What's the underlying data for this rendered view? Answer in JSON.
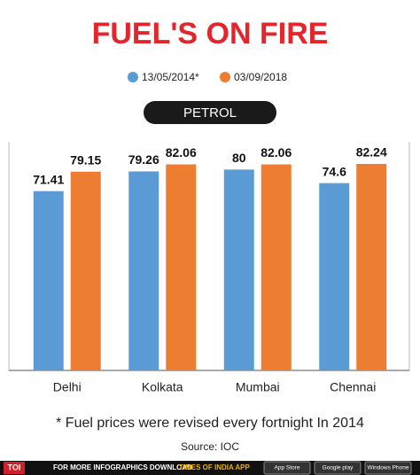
{
  "chart_data": {
    "type": "bar",
    "title": "FUEL'S ON FIRE",
    "subtitle": "PETROL",
    "categories": [
      "Delhi",
      "Kolkata",
      "Mumbai",
      "Chennai"
    ],
    "series": [
      {
        "name": "13/05/2014*",
        "color": "#5b9bd5",
        "values": [
          71.41,
          79.26,
          80,
          74.6
        ]
      },
      {
        "name": "03/09/2018",
        "color": "#ed7d31",
        "values": [
          79.15,
          82.06,
          82.06,
          82.24
        ]
      }
    ],
    "footnote": "* Fuel prices were revised every fortnight In 2014",
    "source": "Source: IOC"
  },
  "footer": {
    "logo": "TOI",
    "text": "FOR MORE  INFOGRAPHICS DOWNLOAD",
    "app": "TIMES OF INDIA APP",
    "badges": [
      "App Store",
      "Google play",
      "Windows Phone"
    ]
  }
}
